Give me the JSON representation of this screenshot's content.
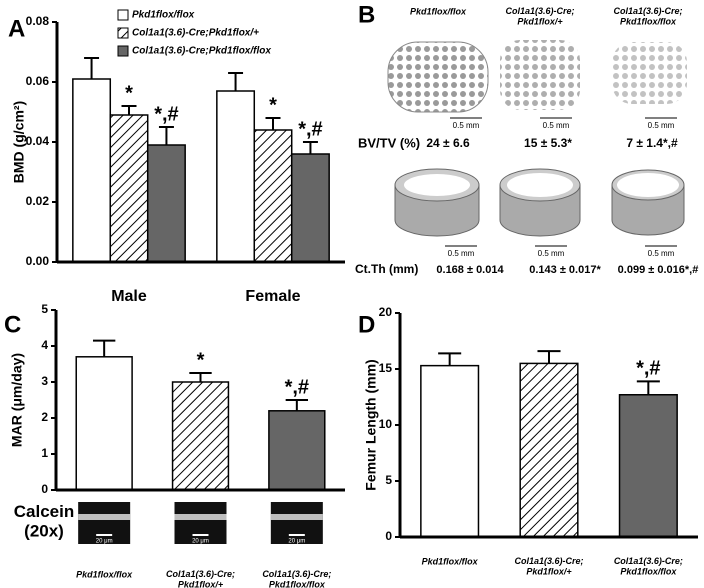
{
  "chart_data": [
    {
      "type": "bar",
      "panel_label": "A",
      "y_label": "BMD (g/cm²)",
      "categories": [
        "Male",
        "Female"
      ],
      "series": [
        {
          "name": "Pkd1flox/flox",
          "color": "#ffffff",
          "pattern": "solid",
          "values": [
            0.061,
            0.057
          ],
          "errors": [
            0.007,
            0.006
          ],
          "annotations": [
            null,
            null
          ]
        },
        {
          "name": "Col1a1(3.6)-Cre;Pkd1flox/+",
          "color": "#ffffff",
          "pattern": "hatch",
          "values": [
            0.049,
            0.044
          ],
          "errors": [
            0.003,
            0.004
          ],
          "annotations": [
            "*",
            "*"
          ]
        },
        {
          "name": "Col1a1(3.6)-Cre;Pkd1flox/flox",
          "color": "#666666",
          "pattern": "solid",
          "values": [
            0.039,
            0.036
          ],
          "errors": [
            0.006,
            0.004
          ],
          "annotations": [
            "*,#",
            "*,#"
          ]
        }
      ],
      "ylim": [
        0,
        0.08
      ],
      "yticks": [
        {
          "value": 0,
          "label": "0.00"
        },
        0.02,
        0.04,
        0.06,
        0.08
      ]
    },
    {
      "type": "bar",
      "panel_label": "C",
      "y_label": "MAR (μm/day)",
      "categories": [
        "Pkd1flox/flox",
        "Col1a1(3.6)-Cre;\nPkd1flox/+",
        "Col1a1(3.6)-Cre;\nPkd1flox/flox"
      ],
      "values": [
        3.7,
        3.0,
        2.2
      ],
      "errors": [
        0.45,
        0.25,
        0.3
      ],
      "annotations": [
        null,
        "*",
        "*,#"
      ],
      "colors": [
        "#ffffff",
        "#ffffff",
        "#666666"
      ],
      "patterns": [
        "solid",
        "hatch",
        "solid"
      ],
      "ylim": [
        0,
        5
      ],
      "yticks": [
        0,
        1,
        2,
        3,
        4,
        5
      ],
      "image_label": "Calcein\n(20x)",
      "image_scale": "20 μm"
    },
    {
      "type": "bar",
      "panel_label": "D",
      "y_label": "Femur Length (mm)",
      "categories": [
        "Pkd1flox/flox",
        "Col1a1(3.6)-Cre;\nPkd1flox/+",
        "Col1a1(3.6)-Cre;\nPkd1flox/flox"
      ],
      "values": [
        15.3,
        15.5,
        12.7
      ],
      "errors": [
        1.1,
        1.1,
        1.2
      ],
      "annotations": [
        null,
        null,
        "*,#"
      ],
      "colors": [
        "#ffffff",
        "#ffffff",
        "#666666"
      ],
      "patterns": [
        "solid",
        "hatch",
        "solid"
      ],
      "ylim": [
        0,
        20
      ],
      "yticks": [
        0,
        5,
        10,
        15,
        20
      ]
    }
  ],
  "panel_b": {
    "panel_label": "B",
    "bv_tv_label": "BV/TV (%)",
    "ct_th_label": "Ct.Th (mm)",
    "scale_label": "0.5 mm",
    "columns": [
      {
        "label": "Pkd1flox/flox",
        "bv_tv": "24 ± 6.6",
        "ct_th": "0.168 ± 0.014"
      },
      {
        "label": "Col1a1(3.6)-Cre;\nPkd1flox/+",
        "bv_tv": "15 ± 5.3*",
        "ct_th": "0.143 ± 0.017*"
      },
      {
        "label": "Col1a1(3.6)-Cre;\nPkd1flox/flox",
        "bv_tv": "7 ± 1.4*,#",
        "ct_th": "0.099 ± 0.016*,#"
      }
    ]
  }
}
